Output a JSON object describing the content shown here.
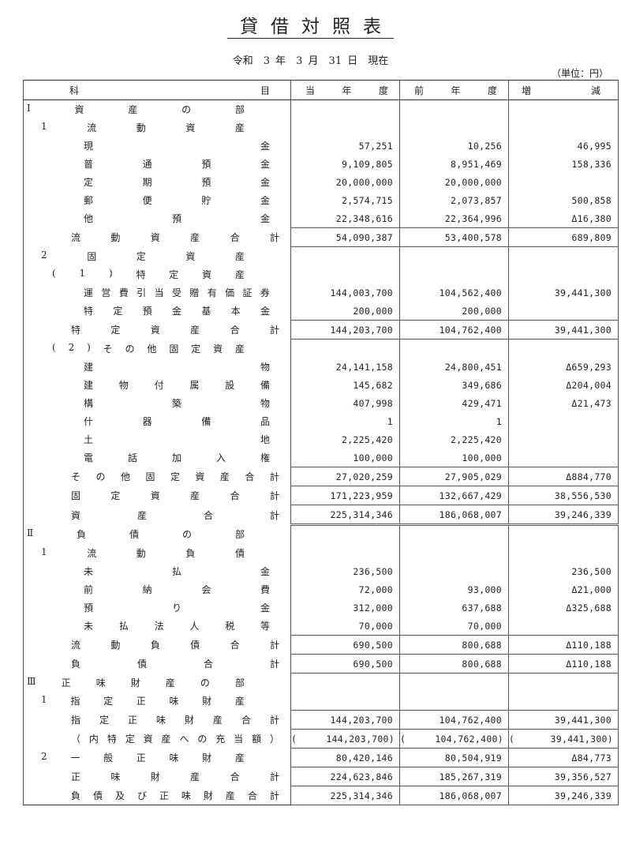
{
  "title": "貸借対照表",
  "date": "令和　3 年　3 月　31 日　現在",
  "unit": "（単位：円）",
  "headers": {
    "item_left": "科",
    "item_right": "目",
    "current": [
      "当",
      "年",
      "度"
    ],
    "previous": [
      "前",
      "年",
      "度"
    ],
    "change": [
      "増",
      "減"
    ]
  },
  "rows": [
    {
      "label": "Ⅰ資産の部",
      "indent": 0,
      "cur": "",
      "prev": "",
      "diff": ""
    },
    {
      "label": "1流動資産",
      "indent": 1,
      "cur": "",
      "prev": "",
      "diff": ""
    },
    {
      "label": "現金",
      "indent": 3,
      "cur": "57,251",
      "prev": "10,256",
      "diff": "46,995"
    },
    {
      "label": "普通預金",
      "indent": 3,
      "cur": "9,109,805",
      "prev": "8,951,469",
      "diff": "158,336"
    },
    {
      "label": "定期預金",
      "indent": 3,
      "cur": "20,000,000",
      "prev": "20,000,000",
      "diff": ""
    },
    {
      "label": "郵便貯金",
      "indent": 3,
      "cur": "2,574,715",
      "prev": "2,073,857",
      "diff": "500,858"
    },
    {
      "label": "他預金",
      "indent": 3,
      "cur": "22,348,616",
      "prev": "22,364,996",
      "diff": "Δ16,380"
    },
    {
      "label": "流動資産合計",
      "indent": 2,
      "cur": "54,090,387",
      "prev": "53,400,578",
      "diff": "689,809",
      "sum": true
    },
    {
      "label": "2固定資産",
      "indent": 1,
      "cur": "",
      "prev": "",
      "diff": ""
    },
    {
      "label": "(1)特定資産",
      "indent": 1.5,
      "cur": "",
      "prev": "",
      "diff": ""
    },
    {
      "label": "運営費引当受贈有価証券",
      "indent": 3,
      "cur": "144,003,700",
      "prev": "104,562,400",
      "diff": "39,441,300"
    },
    {
      "label": "特定預金基本金",
      "indent": 3,
      "cur": "200,000",
      "prev": "200,000",
      "diff": ""
    },
    {
      "label": "特定資産合計",
      "indent": 2,
      "cur": "144,203,700",
      "prev": "104,762,400",
      "diff": "39,441,300",
      "sum": true
    },
    {
      "label": "(2)その他固定資産",
      "indent": 1.5,
      "cur": "",
      "prev": "",
      "diff": ""
    },
    {
      "label": "建物",
      "indent": 3,
      "cur": "24,141,158",
      "prev": "24,800,451",
      "diff": "Δ659,293"
    },
    {
      "label": "建物付属設備",
      "indent": 3,
      "cur": "145,682",
      "prev": "349,686",
      "diff": "Δ204,004"
    },
    {
      "label": "構築物",
      "indent": 3,
      "cur": "407,998",
      "prev": "429,471",
      "diff": "Δ21,473"
    },
    {
      "label": "什器備品",
      "indent": 3,
      "cur": "1",
      "prev": "1",
      "diff": ""
    },
    {
      "label": "土地",
      "indent": 3,
      "cur": "2,225,420",
      "prev": "2,225,420",
      "diff": ""
    },
    {
      "label": "電話加入権",
      "indent": 3,
      "cur": "100,000",
      "prev": "100,000",
      "diff": ""
    },
    {
      "label": "その他固定資産合計",
      "indent": 2,
      "cur": "27,020,259",
      "prev": "27,905,029",
      "diff": "Δ884,770",
      "sum": true
    },
    {
      "label": "固定資産合計",
      "indent": 2,
      "cur": "171,223,959",
      "prev": "132,667,429",
      "diff": "38,556,530",
      "sum": true
    },
    {
      "label": "資産合計",
      "indent": 2,
      "cur": "225,314,346",
      "prev": "186,068,007",
      "diff": "39,246,339",
      "sum": true,
      "dblbottom": true
    },
    {
      "label": "Ⅱ負債の部",
      "indent": 0,
      "cur": "",
      "prev": "",
      "diff": ""
    },
    {
      "label": "1流動負債",
      "indent": 1,
      "cur": "",
      "prev": "",
      "diff": ""
    },
    {
      "label": "未払金",
      "indent": 3,
      "cur": "236,500",
      "prev": "",
      "diff": "236,500"
    },
    {
      "label": "前納会費",
      "indent": 3,
      "cur": "72,000",
      "prev": "93,000",
      "diff": "Δ21,000"
    },
    {
      "label": "預り金",
      "indent": 3,
      "cur": "312,000",
      "prev": "637,688",
      "diff": "Δ325,688"
    },
    {
      "label": "未払法人税等",
      "indent": 3,
      "cur": "70,000",
      "prev": "70,000",
      "diff": ""
    },
    {
      "label": "流動負債合計",
      "indent": 2,
      "cur": "690,500",
      "prev": "800,688",
      "diff": "Δ110,188",
      "sum": true
    },
    {
      "label": "負債合計",
      "indent": 2,
      "cur": "690,500",
      "prev": "800,688",
      "diff": "Δ110,188",
      "sum": true
    },
    {
      "label": "Ⅲ正味財産の部",
      "indent": 0,
      "cur": "",
      "prev": "",
      "diff": ""
    },
    {
      "label": "1指定正味財産",
      "indent": 1,
      "cur": "",
      "prev": "",
      "diff": ""
    },
    {
      "label": "指定正味財産合計",
      "indent": 2,
      "cur": "144,203,700",
      "prev": "104,762,400",
      "diff": "39,441,300",
      "sum": true
    },
    {
      "label": "（内特定資産への充当額）",
      "indent": 2,
      "cur": "144,203,700",
      "prev": "104,762,400",
      "diff": "39,441,300",
      "paren": true
    },
    {
      "label": "2一般正味財産",
      "indent": 1,
      "cur": "80,420,146",
      "prev": "80,504,919",
      "diff": "Δ84,773",
      "sum": true
    },
    {
      "label": "正味財産合計",
      "indent": 2,
      "cur": "224,623,846",
      "prev": "185,267,319",
      "diff": "39,356,527",
      "sum": true
    },
    {
      "label": "負債及び正味財産合計",
      "indent": 2,
      "cur": "225,314,346",
      "prev": "186,068,007",
      "diff": "39,246,339",
      "sum": true
    }
  ]
}
